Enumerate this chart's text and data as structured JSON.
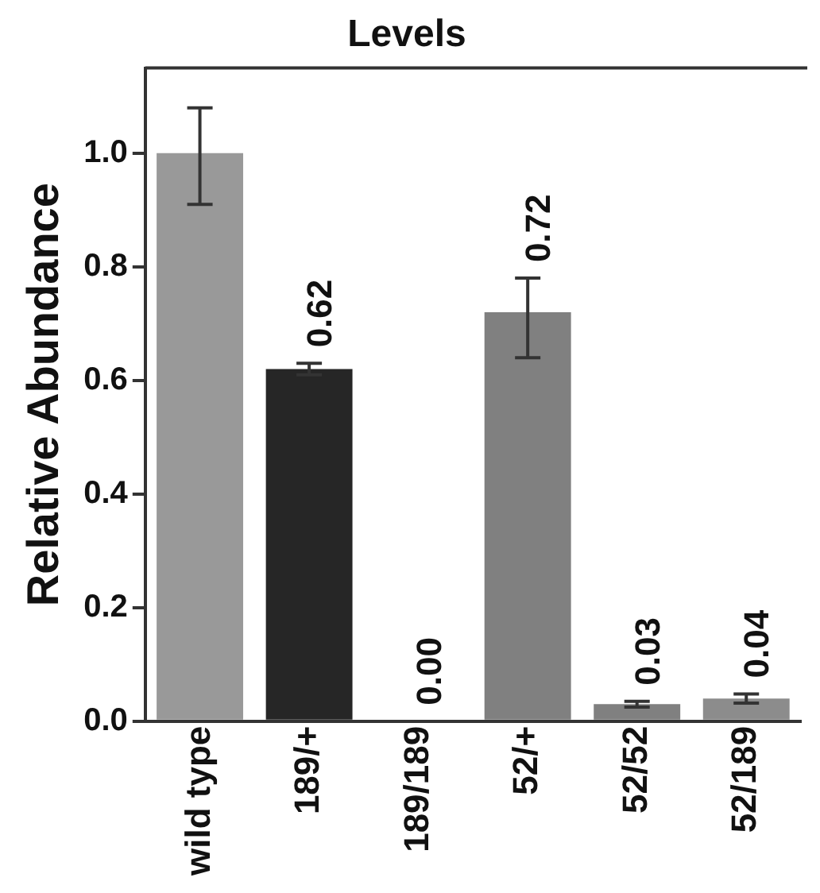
{
  "chart_data": {
    "type": "bar",
    "title": "Levels",
    "ylabel": "Relative Abundance",
    "categories": [
      "wild type",
      "189/+",
      "189/189",
      "52/+",
      "52/52",
      "52/189"
    ],
    "values": [
      1.0,
      0.62,
      0.0,
      0.72,
      0.03,
      0.04
    ],
    "colors": [
      "#999999",
      "#262626",
      "#ffffff",
      "#808080",
      "#808080",
      "#8c8c8c"
    ],
    "errors": [
      [
        0.91,
        1.08
      ],
      0.01,
      null,
      [
        0.64,
        0.78
      ],
      0.005,
      0.008
    ],
    "value_labels": [
      null,
      "0.62",
      "0.00",
      "0.72",
      "0.03",
      "0.04"
    ],
    "ylim": [
      0,
      1.15
    ],
    "yticks": [
      {
        "value": 0,
        "label": "0.0"
      },
      {
        "value": 0.2,
        "label": "0.2"
      },
      {
        "value": 0.4,
        "label": "0.4"
      },
      {
        "value": 0.6,
        "label": "0.6"
      },
      {
        "value": 0.8,
        "label": "0.8"
      },
      {
        "value": 1.0,
        "label": "1.0"
      }
    ],
    "grid": false,
    "legend": false
  }
}
